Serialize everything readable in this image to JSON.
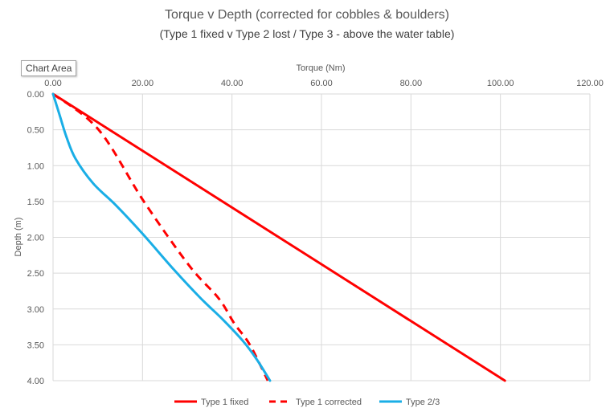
{
  "chart_data": {
    "type": "line",
    "title": "Torque v Depth (corrected for cobbles & boulders)",
    "subtitle": "(Type 1 fixed v Type 2 lost / Type 3 - above the water table)",
    "xlabel": "Torque (Nm)",
    "ylabel": "Depth (m)",
    "xlim": [
      0,
      120
    ],
    "ylim": [
      0,
      4
    ],
    "y_reversed": true,
    "x_axis_position": "top",
    "x_ticks": [
      "0.00",
      "20.00",
      "40.00",
      "60.00",
      "80.00",
      "100.00",
      "120.00"
    ],
    "y_ticks": [
      "0.00",
      "0.50",
      "1.00",
      "1.50",
      "2.00",
      "2.50",
      "3.00",
      "3.50",
      "4.00"
    ],
    "grid": true,
    "legend_position": "bottom",
    "series": [
      {
        "name": "Type 1 fixed",
        "color": "#ff0000",
        "dash": "solid",
        "points": [
          [
            0,
            0
          ],
          [
            101,
            4.0
          ]
        ]
      },
      {
        "name": "Type 1 corrected",
        "color": "#ff0000",
        "dash": "dashed",
        "points": [
          [
            0,
            0
          ],
          [
            10.2,
            0.5
          ],
          [
            20.3,
            1.5
          ],
          [
            30.5,
            2.4
          ],
          [
            37.0,
            2.85
          ],
          [
            40.5,
            3.2
          ],
          [
            44.0,
            3.5
          ],
          [
            48.0,
            4.0
          ]
        ]
      },
      {
        "name": "Type 2/3",
        "color": "#1aaee6",
        "dash": "solid",
        "points": [
          [
            0,
            0
          ],
          [
            1.5,
            0.3
          ],
          [
            3.0,
            0.6
          ],
          [
            5.0,
            0.9
          ],
          [
            9.0,
            1.25
          ],
          [
            14.0,
            1.55
          ],
          [
            20.0,
            1.95
          ],
          [
            27.0,
            2.45
          ],
          [
            33.0,
            2.85
          ],
          [
            38.0,
            3.15
          ],
          [
            42.5,
            3.45
          ],
          [
            45.5,
            3.7
          ],
          [
            48.5,
            4.0
          ]
        ]
      }
    ]
  },
  "ui": {
    "tooltip": "Chart Area"
  }
}
